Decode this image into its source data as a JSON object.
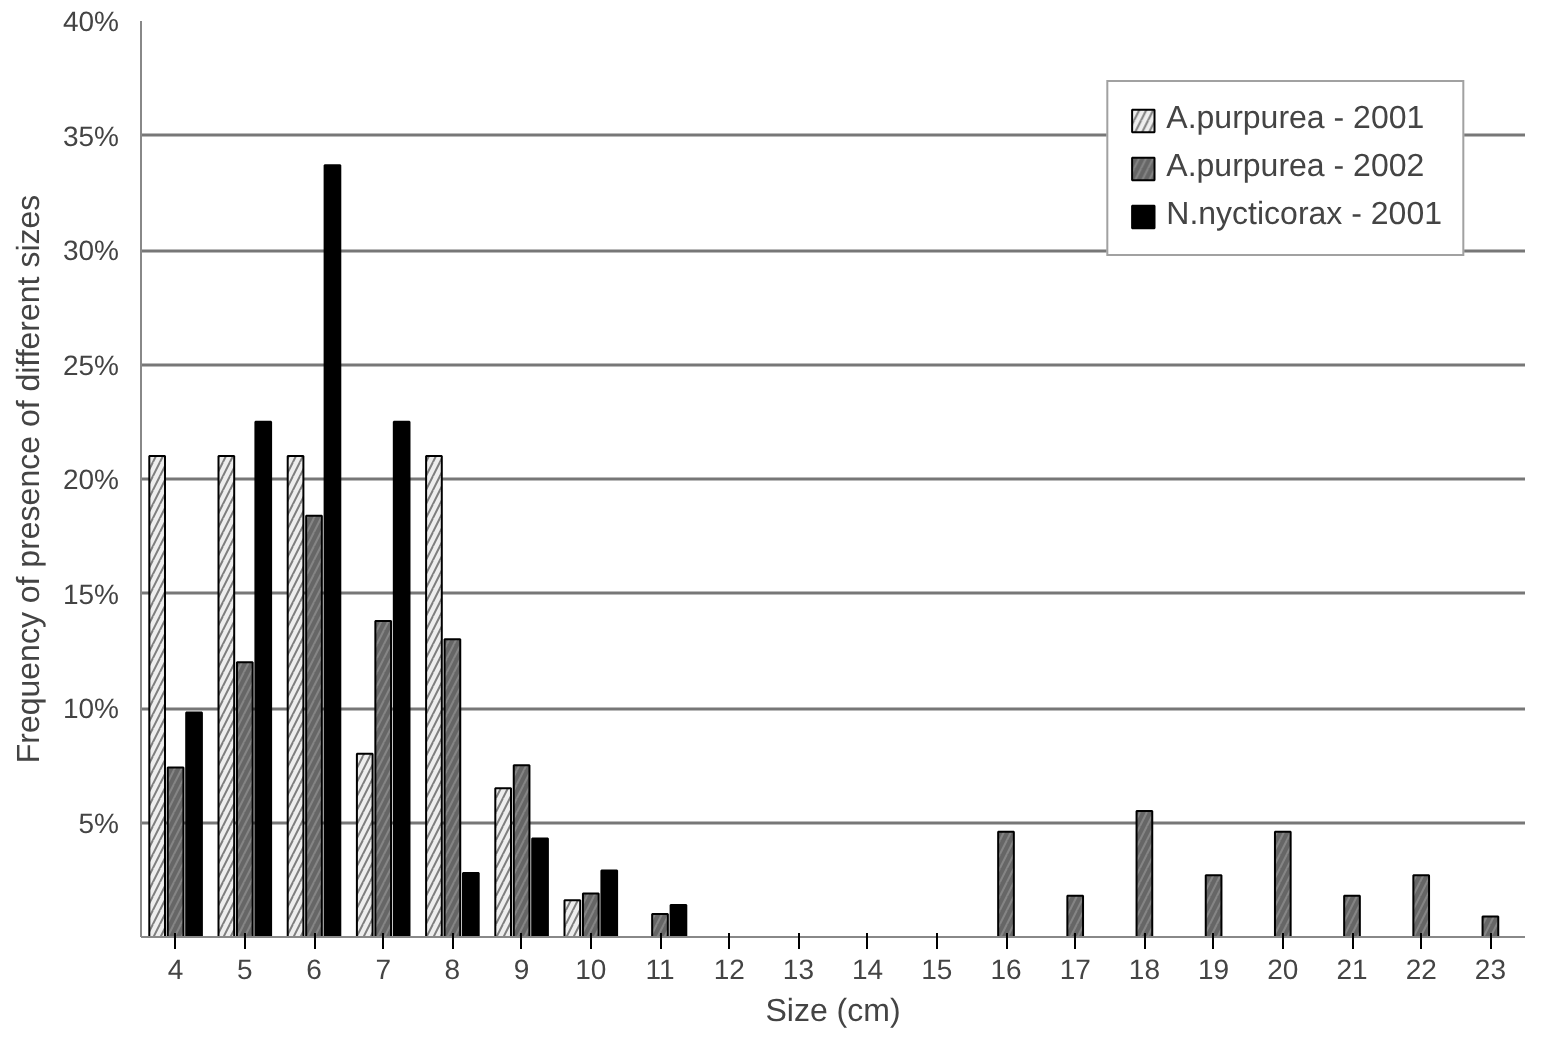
{
  "chart_data": {
    "type": "bar",
    "xlabel": "Size (cm)",
    "ylabel": "Frequency of presence of different sizes",
    "categories": [
      "4",
      "5",
      "6",
      "7",
      "8",
      "9",
      "10",
      "11",
      "12",
      "13",
      "14",
      "15",
      "16",
      "17",
      "18",
      "19",
      "20",
      "21",
      "22",
      "23"
    ],
    "series": [
      {
        "name": "A.purpurea - 2001",
        "color": "#eeeeee",
        "values": [
          21,
          21,
          21,
          8,
          21,
          6.5,
          1.6,
          null,
          null,
          null,
          null,
          null,
          null,
          null,
          null,
          null,
          null,
          null,
          null,
          null
        ]
      },
      {
        "name": "A.purpurea - 2002",
        "color": "#666666",
        "values": [
          7.4,
          12,
          18.4,
          13.8,
          13,
          7.5,
          1.9,
          1,
          null,
          null,
          null,
          null,
          4.6,
          1.8,
          5.5,
          2.7,
          4.6,
          1.8,
          2.7,
          0.9
        ]
      },
      {
        "name": "N.nycticorax - 2001",
        "color": "#000000",
        "values": [
          9.8,
          22.5,
          33.7,
          22.5,
          2.8,
          4.3,
          2.9,
          1.4,
          null,
          null,
          null,
          null,
          null,
          null,
          null,
          null,
          null,
          null,
          null,
          null
        ]
      }
    ],
    "ylim": [
      0,
      40
    ],
    "yticks": [
      {
        "value": 5,
        "label": "5%"
      },
      {
        "value": 10,
        "label": "10%"
      },
      {
        "value": 15,
        "label": "15%"
      },
      {
        "value": 20,
        "label": "20%"
      },
      {
        "value": 25,
        "label": "25%"
      },
      {
        "value": 30,
        "label": "30%"
      },
      {
        "value": 35,
        "label": "35%"
      },
      {
        "value": 40,
        "label": "40%"
      }
    ],
    "grid": "y",
    "legend": "top right"
  }
}
